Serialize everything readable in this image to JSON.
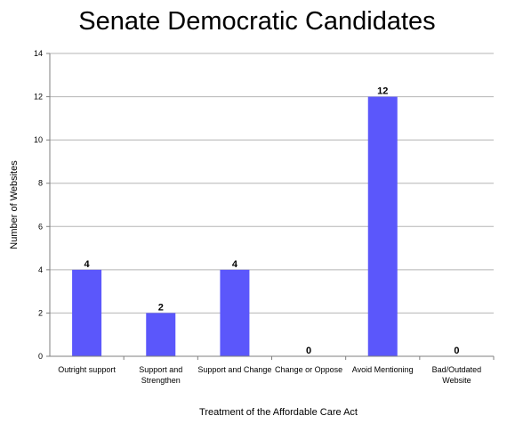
{
  "chart_data": {
    "type": "bar",
    "title": "Senate Democratic Candidates",
    "xlabel": "Treatment of the Affordable Care Act",
    "ylabel": "Number of Websites",
    "ylim": [
      0,
      14
    ],
    "yticks": [
      0,
      2,
      4,
      6,
      8,
      10,
      12,
      14
    ],
    "grid": true,
    "categories": [
      [
        "Outright support"
      ],
      [
        "Support and",
        "Strengthen"
      ],
      [
        "Support and Change"
      ],
      [
        "Change or Oppose"
      ],
      [
        "Avoid Mentioning"
      ],
      [
        "Bad/Outdated",
        "Website"
      ]
    ],
    "values": [
      4,
      2,
      4,
      0,
      12,
      0
    ],
    "data_labels": [
      "4",
      "2",
      "4",
      "0",
      "12",
      "0"
    ],
    "colors": {
      "bar": "#5b57fb",
      "grid": "#b5b5b5",
      "axis": "#7f7f7f"
    }
  }
}
